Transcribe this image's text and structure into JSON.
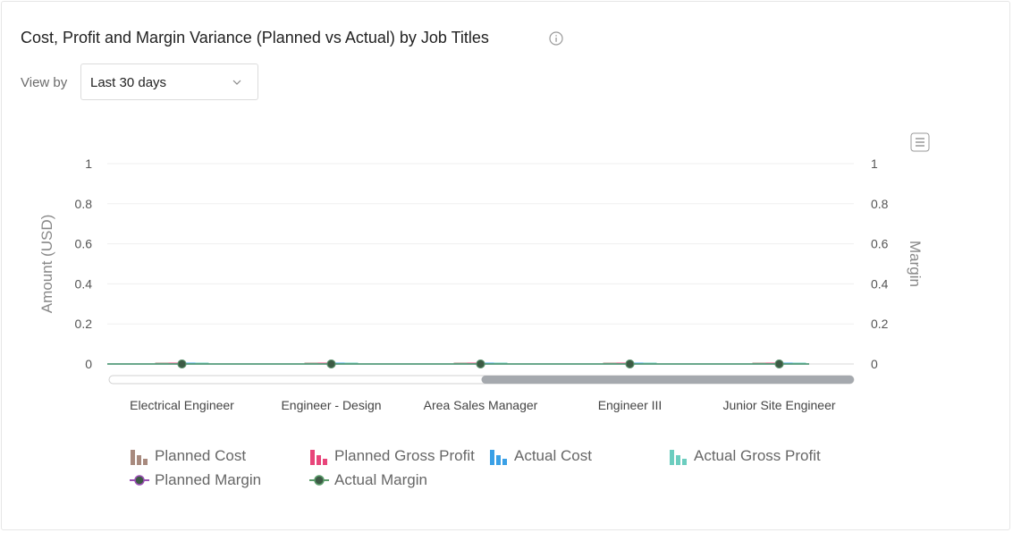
{
  "card": {
    "title": "Cost, Profit and Margin Variance (Planned vs Actual) by Job Titles",
    "info_icon": "info-circle-icon",
    "view_by_label": "View by",
    "view_by_value": "Last 30 days",
    "menu_icon": "hamburger-menu-icon"
  },
  "colors": {
    "planned_cost": "#a88a7e",
    "planned_gross_profit": "#e8457a",
    "actual_cost": "#3aa0e6",
    "actual_gross_profit": "#6ccdbf",
    "planned_margin": "#9b4fb5",
    "actual_margin": "#5a9c6a",
    "marker_fill": "#3d5a45"
  },
  "chart_data": {
    "type": "bar",
    "categories": [
      "Electrical Engineer",
      "Engineer - Design",
      "Area Sales Manager",
      "Engineer III",
      "Junior Site Engineer"
    ],
    "ylabel": "Amount (USD)",
    "y2label": "Margin",
    "ylim": [
      0,
      1
    ],
    "y2lim": [
      0,
      1
    ],
    "yticks": [
      "0",
      "0.2",
      "0.4",
      "0.6",
      "0.8",
      "1"
    ],
    "y2ticks": [
      "0",
      "0.2",
      "0.4",
      "0.6",
      "0.8",
      "1"
    ],
    "grid": true,
    "legend_position": "bottom",
    "series": [
      {
        "name": "Planned Cost",
        "kind": "bar",
        "values": [
          0,
          0,
          0,
          0,
          0
        ]
      },
      {
        "name": "Planned Gross Profit",
        "kind": "bar",
        "values": [
          0,
          0,
          0,
          0,
          0
        ]
      },
      {
        "name": "Actual Cost",
        "kind": "bar",
        "values": [
          0,
          0,
          0,
          0,
          0
        ]
      },
      {
        "name": "Actual Gross Profit",
        "kind": "bar",
        "values": [
          0,
          0,
          0,
          0,
          0
        ]
      },
      {
        "name": "Planned Margin",
        "kind": "line",
        "values": [
          0,
          0,
          0,
          0,
          0
        ]
      },
      {
        "name": "Actual Margin",
        "kind": "line",
        "values": [
          0,
          0,
          0,
          0,
          0
        ]
      }
    ],
    "scrollbar_visible_fraction": [
      0.5,
      1.0
    ]
  }
}
